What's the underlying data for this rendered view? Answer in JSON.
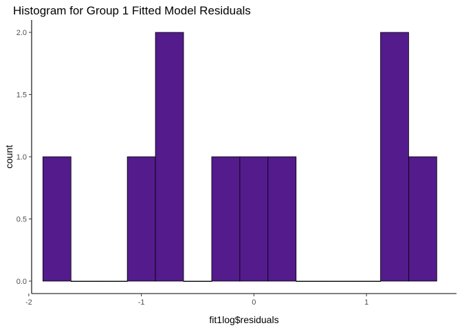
{
  "chart_data": {
    "type": "bar",
    "subtype": "histogram",
    "title": "Histogram for Group 1 Fitted Model Residuals",
    "xlabel": "fit1log$residuals",
    "ylabel": "count",
    "bin_width": 0.25,
    "bins": [
      {
        "x_start": -1.875,
        "x_end": -1.625,
        "count": 1
      },
      {
        "x_start": -1.625,
        "x_end": -1.375,
        "count": 0
      },
      {
        "x_start": -1.375,
        "x_end": -1.125,
        "count": 0
      },
      {
        "x_start": -1.125,
        "x_end": -0.875,
        "count": 1
      },
      {
        "x_start": -0.875,
        "x_end": -0.625,
        "count": 2
      },
      {
        "x_start": -0.625,
        "x_end": -0.375,
        "count": 0
      },
      {
        "x_start": -0.375,
        "x_end": -0.125,
        "count": 1
      },
      {
        "x_start": -0.125,
        "x_end": 0.125,
        "count": 1
      },
      {
        "x_start": 0.125,
        "x_end": 0.375,
        "count": 1
      },
      {
        "x_start": 0.375,
        "x_end": 0.625,
        "count": 0
      },
      {
        "x_start": 0.625,
        "x_end": 0.875,
        "count": 0
      },
      {
        "x_start": 0.875,
        "x_end": 1.125,
        "count": 0
      },
      {
        "x_start": 1.125,
        "x_end": 1.375,
        "count": 2
      },
      {
        "x_start": 1.375,
        "x_end": 1.625,
        "count": 1
      }
    ],
    "xlim": [
      -1.975,
      1.8
    ],
    "ylim": [
      -0.1,
      2.1
    ],
    "x_ticks": [
      {
        "value": -2,
        "label": "-2"
      },
      {
        "value": -1,
        "label": "-1"
      },
      {
        "value": 0,
        "label": "0"
      },
      {
        "value": 1,
        "label": "1"
      }
    ],
    "y_ticks": [
      {
        "value": 0,
        "label": "0.0"
      },
      {
        "value": 0.5,
        "label": "0.5"
      },
      {
        "value": 1,
        "label": "1.0"
      },
      {
        "value": 1.5,
        "label": "1.5"
      },
      {
        "value": 2,
        "label": "2.0"
      }
    ],
    "grid": false,
    "legend": "none",
    "colors": {
      "fill": "#531b8c",
      "outline": "#000000",
      "axis": "#000000",
      "tick_label": "#4d4d4d"
    }
  }
}
